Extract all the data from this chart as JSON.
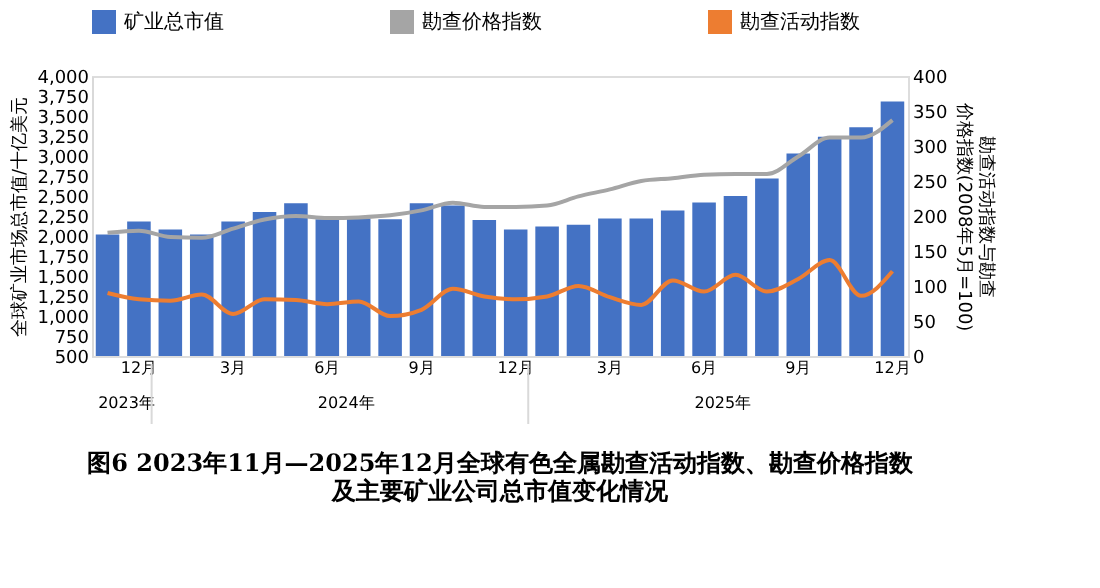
{
  "chart_data": {
    "type": "bar",
    "title": "图6 2023年11月—2025年12月全球有色全属勘查活动指数、勘查价格指数及主要矿业公司总市值变化情况",
    "ylabel": "全球矿业市场总市值/十亿美元",
    "y2label": "勘查活动指数与勘查价格指数(2008年5月=100)",
    "categories": [
      null,
      "12月",
      null,
      null,
      "3月",
      null,
      null,
      "6月",
      null,
      null,
      "9月",
      null,
      null,
      "12月",
      null,
      null,
      "3月",
      null,
      null,
      "6月",
      null,
      null,
      "9月",
      null,
      null,
      "12月"
    ],
    "annotations": [
      "2023年",
      "2024年",
      "2025年"
    ],
    "ylim": [
      500,
      4000
    ],
    "yticks": [
      {
        "value": 500,
        "label": "500"
      },
      {
        "value": 750,
        "label": "750"
      },
      {
        "value": 1000,
        "label": "1,000"
      },
      {
        "value": 1250,
        "label": "1,250"
      },
      {
        "value": 1500,
        "label": "1,500"
      },
      {
        "value": 1750,
        "label": "1,750"
      },
      {
        "value": 2000,
        "label": "2,000"
      },
      {
        "value": 2250,
        "label": "2,250"
      },
      {
        "value": 2500,
        "label": "2,500"
      },
      {
        "value": 2750,
        "label": "2,750"
      },
      {
        "value": 3000,
        "label": "3,000"
      },
      {
        "value": 3250,
        "label": "3,250"
      },
      {
        "value": 3500,
        "label": "3,500"
      },
      {
        "value": 3750,
        "label": "3,750"
      },
      {
        "value": 4000,
        "label": "4,000"
      }
    ],
    "y2lim": [
      0,
      400
    ],
    "y2ticks": [
      0,
      50,
      100,
      150,
      200,
      250,
      300,
      350,
      400
    ],
    "legend": "top",
    "grid": false,
    "series": [
      {
        "name": "矿业总市值",
        "color": "#4472c4",
        "values": [
          2020,
          2180,
          2080,
          2020,
          2180,
          2300,
          2410,
          2210,
          2220,
          2210,
          2410,
          2380,
          2200,
          2080,
          2120,
          2140,
          2220,
          2220,
          2320,
          2420,
          2500,
          2720,
          3030,
          3240,
          3360,
          3680
        ]
      },
      {
        "name": "勘查价格指数",
        "type": "line",
        "axis": "y2",
        "color": "#a5a5a5",
        "values": [
          176,
          179,
          170,
          169,
          182,
          195,
          200,
          197,
          198,
          201,
          208,
          219,
          213,
          213,
          215,
          228,
          238,
          250,
          254,
          259,
          260,
          260,
          285,
          312,
          312,
          337
        ]
      },
      {
        "name": "勘查活动指数",
        "type": "line",
        "axis": "y2",
        "color": "#ed7d31",
        "values": [
          90,
          81,
          79,
          88,
          60,
          81,
          80,
          74,
          78,
          57,
          66,
          96,
          85,
          81,
          85,
          100,
          84,
          73,
          108,
          92,
          116,
          92,
          110,
          137,
          86,
          121
        ]
      }
    ]
  }
}
